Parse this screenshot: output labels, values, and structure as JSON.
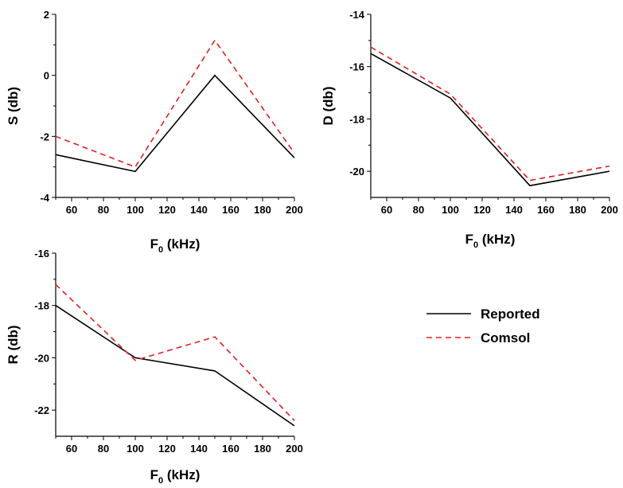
{
  "legend": {
    "entries": [
      {
        "name": "Reported",
        "color": "#000000",
        "dash": "solid"
      },
      {
        "name": "Comsol",
        "color": "#e02020",
        "dash": "dashed"
      }
    ]
  },
  "chart_data": [
    {
      "type": "line",
      "ylabel": "S (db)",
      "xlabel_main": "F",
      "xlabel_sub": "0",
      "xlabel_tail": " (kHz)",
      "xlim": [
        50,
        200
      ],
      "ylim": [
        -4,
        2
      ],
      "xticks": [
        60,
        80,
        100,
        120,
        140,
        160,
        180,
        200
      ],
      "yticks": [
        -4,
        -2,
        0,
        2
      ],
      "grid": false,
      "x": [
        50,
        100,
        150,
        200
      ],
      "series": [
        {
          "name": "Reported",
          "values": [
            -2.6,
            -3.15,
            0.0,
            -2.7
          ]
        },
        {
          "name": "Comsol",
          "values": [
            -2.0,
            -3.0,
            1.15,
            -2.55
          ]
        }
      ]
    },
    {
      "type": "line",
      "ylabel": "D (db)",
      "xlabel_main": "F",
      "xlabel_sub": "0",
      "xlabel_tail": " (kHz)",
      "xlim": [
        50,
        200
      ],
      "ylim": [
        -21,
        -14
      ],
      "xticks": [
        60,
        80,
        100,
        120,
        140,
        160,
        180,
        200
      ],
      "yticks": [
        -20,
        -18,
        -16,
        -14
      ],
      "grid": false,
      "x": [
        50,
        100,
        150,
        200
      ],
      "series": [
        {
          "name": "Reported",
          "values": [
            -15.5,
            -17.2,
            -20.55,
            -20.0
          ]
        },
        {
          "name": "Comsol",
          "values": [
            -15.25,
            -17.05,
            -20.35,
            -19.8
          ]
        }
      ]
    },
    {
      "type": "line",
      "ylabel": "R (db)",
      "xlabel_main": "F",
      "xlabel_sub": "0",
      "xlabel_tail": " (kHz)",
      "xlim": [
        50,
        200
      ],
      "ylim": [
        -23,
        -16
      ],
      "xticks": [
        60,
        80,
        100,
        120,
        140,
        160,
        180,
        200
      ],
      "yticks": [
        -22,
        -20,
        -18,
        -16
      ],
      "grid": false,
      "x": [
        50,
        100,
        150,
        200
      ],
      "series": [
        {
          "name": "Reported",
          "values": [
            -18.0,
            -20.0,
            -20.5,
            -22.6
          ]
        },
        {
          "name": "Comsol",
          "values": [
            -17.2,
            -20.1,
            -19.2,
            -22.4
          ]
        }
      ]
    }
  ]
}
